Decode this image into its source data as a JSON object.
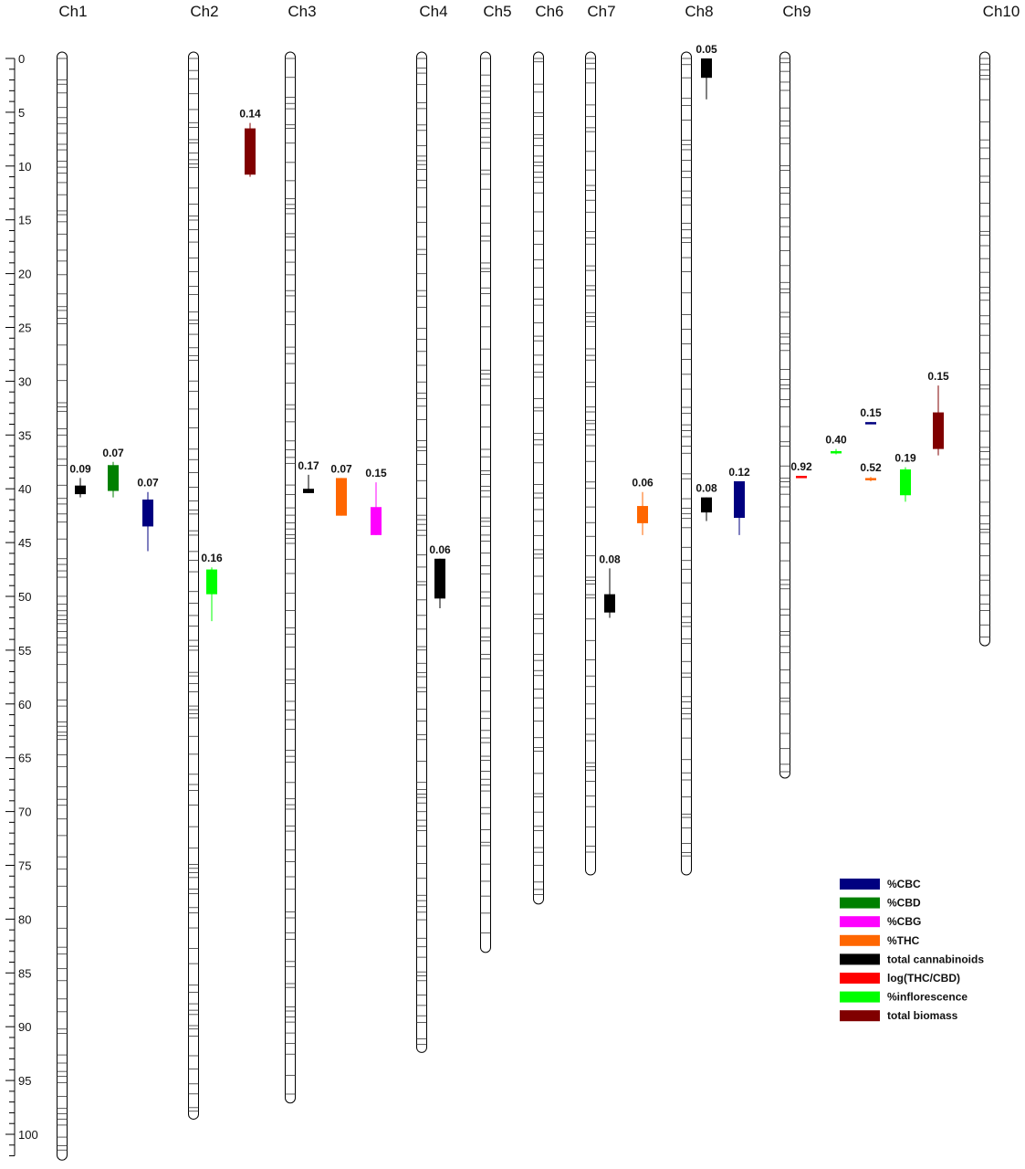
{
  "chart_data": {
    "type": "linkage_map",
    "axis": {
      "ticks": [
        0,
        5,
        10,
        15,
        20,
        25,
        30,
        35,
        40,
        45,
        50,
        55,
        60,
        65,
        70,
        75,
        80,
        85,
        90,
        95,
        100
      ],
      "range": [
        0,
        102
      ]
    },
    "chromosomes": [
      {
        "name": "Ch1",
        "length": 101.8
      },
      {
        "name": "Ch2",
        "length": 98.0
      },
      {
        "name": "Ch3",
        "length": 96.5
      },
      {
        "name": "Ch4",
        "length": 91.8
      },
      {
        "name": "Ch5",
        "length": 82.5
      },
      {
        "name": "Ch6",
        "length": 78.0
      },
      {
        "name": "Ch7",
        "length": 75.3
      },
      {
        "name": "Ch8",
        "length": 75.3
      },
      {
        "name": "Ch9",
        "length": 66.3
      },
      {
        "name": "Ch10",
        "length": 54.0
      }
    ],
    "legend": [
      {
        "label": "%CBC",
        "color": "#000080"
      },
      {
        "label": "%CBD",
        "color": "#008000"
      },
      {
        "label": "%CBG",
        "color": "#ff00ff"
      },
      {
        "label": "%THC",
        "color": "#ff6600"
      },
      {
        "label": "total cannabinoids",
        "color": "#000000"
      },
      {
        "label": "log(THC/CBD)",
        "color": "#ff0000"
      },
      {
        "label": "%inflorescence",
        "color": "#00ff00"
      },
      {
        "label": "total biomass",
        "color": "#800000"
      }
    ],
    "qtls": [
      {
        "chr": "Ch1",
        "trait": "total cannabinoids",
        "label": "0.09",
        "start": 39.7,
        "end": 40.5,
        "whisker": [
          39.0,
          40.8
        ]
      },
      {
        "chr": "Ch1",
        "trait": "%CBD",
        "label": "0.07",
        "start": 37.8,
        "end": 40.2,
        "whisker": [
          37.5,
          40.8
        ]
      },
      {
        "chr": "Ch1",
        "trait": "%CBC",
        "label": "0.07",
        "start": 41.0,
        "end": 43.5,
        "whisker": [
          40.3,
          45.8
        ]
      },
      {
        "chr": "Ch2",
        "trait": "total biomass",
        "label": "0.14",
        "start": 6.5,
        "end": 10.8,
        "whisker": [
          6.0,
          11.0
        ]
      },
      {
        "chr": "Ch2",
        "trait": "%inflorescence",
        "label": "0.16",
        "start": 47.5,
        "end": 49.8,
        "whisker": [
          47.3,
          52.3
        ]
      },
      {
        "chr": "Ch3",
        "trait": "total cannabinoids",
        "label": "0.17",
        "start": 40.0,
        "end": 40.4,
        "whisker": [
          38.7,
          40.4
        ]
      },
      {
        "chr": "Ch3",
        "trait": "%THC",
        "label": "0.07",
        "start": 39.0,
        "end": 42.5,
        "whisker": [
          39.0,
          42.5
        ]
      },
      {
        "chr": "Ch3",
        "trait": "%CBG",
        "label": "0.15",
        "start": 41.7,
        "end": 44.3,
        "whisker": [
          39.4,
          44.3
        ]
      },
      {
        "chr": "Ch4",
        "trait": "total cannabinoids",
        "label": "0.06",
        "start": 46.5,
        "end": 50.2,
        "whisker": [
          46.5,
          51.1
        ]
      },
      {
        "chr": "Ch7",
        "trait": "total cannabinoids",
        "label": "0.08",
        "start": 49.8,
        "end": 51.5,
        "whisker": [
          47.4,
          52.0
        ]
      },
      {
        "chr": "Ch7",
        "trait": "%THC",
        "label": "0.06",
        "start": 41.6,
        "end": 43.2,
        "whisker": [
          40.3,
          44.3
        ]
      },
      {
        "chr": "Ch8",
        "trait": "total cannabinoids",
        "label": "0.05",
        "start": 0.0,
        "end": 1.8,
        "whisker": [
          0.0,
          3.8
        ]
      },
      {
        "chr": "Ch8",
        "trait": "total cannabinoids",
        "label": "0.08",
        "start": 40.8,
        "end": 42.2,
        "whisker": [
          40.8,
          43.0
        ]
      },
      {
        "chr": "Ch8",
        "trait": "%CBC",
        "label": "0.12",
        "start": 39.3,
        "end": 42.7,
        "whisker": [
          39.3,
          44.3
        ]
      },
      {
        "chr": "Ch9",
        "trait": "log(THC/CBD)",
        "label": "0.92",
        "start": 38.8,
        "end": 39.0,
        "whisker": [
          38.8,
          39.0
        ]
      },
      {
        "chr": "Ch9",
        "trait": "%inflorescence",
        "label": "0.40",
        "start": 36.5,
        "end": 36.6,
        "whisker": [
          36.3,
          36.8
        ]
      },
      {
        "chr": "Ch9",
        "trait": "%CBC",
        "label": "0.15",
        "start": 33.8,
        "end": 34.0,
        "whisker": [
          33.8,
          34.0
        ]
      },
      {
        "chr": "Ch9",
        "trait": "%THC",
        "label": "0.52",
        "start": 39.0,
        "end": 39.2,
        "whisker": [
          38.9,
          39.3
        ]
      },
      {
        "chr": "Ch9",
        "trait": "%inflorescence",
        "label": "0.19",
        "start": 38.2,
        "end": 40.6,
        "whisker": [
          38.0,
          41.2
        ]
      },
      {
        "chr": "Ch9",
        "trait": "total biomass",
        "label": "0.15",
        "start": 32.9,
        "end": 36.3,
        "whisker": [
          30.4,
          36.9
        ]
      }
    ]
  }
}
